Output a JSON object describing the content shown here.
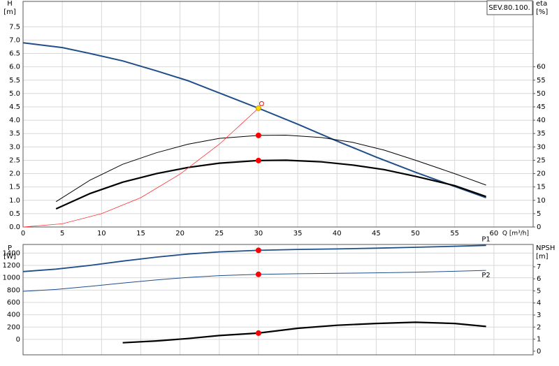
{
  "model_label": "SEV.80.100.",
  "chart_data": [
    {
      "type": "line",
      "y_label": "H",
      "y_unit": "[m]",
      "y2_label": "eta",
      "y2_unit": "[%]",
      "x_label": "Q [m³/h]",
      "xlim": [
        0,
        65
      ],
      "xticks": [
        0,
        5,
        10,
        15,
        20,
        25,
        30,
        35,
        40,
        45,
        50,
        55,
        60
      ],
      "ylim": [
        0,
        8.45
      ],
      "yticks": [
        {
          "value": 0,
          "label": "0.0"
        },
        0.5,
        {
          "value": 1,
          "label": "1.0"
        },
        1.5,
        {
          "value": 2,
          "label": "2.0"
        },
        2.5,
        {
          "value": 3,
          "label": "3.0"
        },
        3.5,
        {
          "value": 4,
          "label": "4.0"
        },
        4.5,
        {
          "value": 5,
          "label": "5.0"
        },
        5.5,
        {
          "value": 6,
          "label": "6.0"
        },
        6.5,
        {
          "value": 7,
          "label": "7.0"
        },
        7.5
      ],
      "y2lim": [
        0,
        84.5
      ],
      "y2ticks": [
        0,
        5,
        10,
        15,
        20,
        25,
        30,
        35,
        40,
        45,
        50,
        55,
        60
      ],
      "grid": true,
      "series": [
        {
          "color": "#1f4e89",
          "line_width": 2,
          "x": [
            0,
            5,
            8.5,
            12.7,
            17,
            21,
            25,
            30,
            35,
            40,
            45,
            50,
            55,
            59
          ],
          "values": [
            6.9,
            6.72,
            6.5,
            6.22,
            5.85,
            5.48,
            5.02,
            4.45,
            3.85,
            3.22,
            2.62,
            2.05,
            1.52,
            1.1
          ]
        },
        {
          "color": "#000000",
          "line_width": 1,
          "axis": "y2",
          "x": [
            4.2,
            8.5,
            12.7,
            17,
            21,
            25,
            30,
            33.5,
            38,
            42,
            46,
            50,
            55,
            59
          ],
          "values": [
            9.5,
            17.5,
            23.5,
            27.8,
            31,
            33.2,
            34.3,
            34.4,
            33.5,
            31.7,
            28.8,
            25,
            20,
            15.7
          ]
        },
        {
          "color": "#000000",
          "line_width": 2.2,
          "axis": "y2",
          "x": [
            4.2,
            8.5,
            12.7,
            17,
            21,
            25,
            30,
            33.5,
            38,
            42,
            46,
            50,
            55,
            59
          ],
          "values": [
            6.8,
            12.5,
            16.8,
            20,
            22.3,
            23.9,
            24.9,
            25,
            24.4,
            23.2,
            21.5,
            19,
            15.5,
            11.4
          ]
        },
        {
          "color": "#ff3030",
          "line_width": 0.8,
          "x": [
            0,
            5,
            10,
            15,
            20,
            25,
            30
          ],
          "values": [
            0,
            0.12,
            0.5,
            1.1,
            1.98,
            3.1,
            4.45
          ]
        }
      ],
      "markers": [
        {
          "x": 30,
          "y": 4.45,
          "color": "#ffd700"
        },
        {
          "x": 30,
          "y": 34.3,
          "axis": "y2",
          "color": "#ff0000"
        },
        {
          "x": 30,
          "y": 24.9,
          "axis": "y2",
          "color": "#ff0000"
        },
        {
          "x": 30.4,
          "y": 4.62,
          "color": "#ff0000",
          "shape": "open"
        }
      ]
    },
    {
      "type": "line",
      "y_label": "P",
      "y_unit": "[W]",
      "y2_label": "NPSH",
      "y2_unit": "[m]",
      "xlim": [
        0,
        65
      ],
      "xticks": [
        0,
        5,
        10,
        15,
        20,
        25,
        30,
        35,
        40,
        45,
        50,
        55,
        60
      ],
      "ylim": [
        -250,
        1540
      ],
      "yticks": [
        0,
        200,
        400,
        600,
        800,
        1000,
        1200,
        1400
      ],
      "y2lim": [
        -0.3,
        8.85
      ],
      "y2ticks": [
        0,
        1,
        2,
        3,
        4,
        5,
        6,
        7
      ],
      "grid": true,
      "series": [
        {
          "name": "P1",
          "color": "#1f4e89",
          "line_width": 1.8,
          "x": [
            0,
            4.2,
            8.5,
            12.7,
            17,
            21,
            25,
            30,
            35,
            40,
            45,
            50,
            55,
            59
          ],
          "values": [
            1100,
            1140,
            1200,
            1270,
            1335,
            1385,
            1420,
            1445,
            1460,
            1468,
            1480,
            1495,
            1510,
            1525
          ]
        },
        {
          "name": "P2",
          "color": "#1f4e89",
          "line_width": 1,
          "x": [
            0,
            4.2,
            8.5,
            12.7,
            17,
            21,
            25,
            30,
            35,
            40,
            45,
            50,
            55,
            59
          ],
          "values": [
            780,
            810,
            860,
            915,
            965,
            1005,
            1035,
            1055,
            1065,
            1072,
            1080,
            1090,
            1105,
            1120
          ]
        },
        {
          "color": "#000000",
          "line_width": 2.2,
          "axis": "y2",
          "x": [
            12.7,
            17,
            21,
            25,
            30,
            35,
            40,
            45,
            50,
            55,
            59
          ],
          "values": [
            0.7,
            0.85,
            1.05,
            1.3,
            1.5,
            1.9,
            2.15,
            2.3,
            2.4,
            2.3,
            2.05
          ]
        }
      ],
      "markers": [
        {
          "x": 30,
          "y": 1445,
          "color": "#ff0000"
        },
        {
          "x": 30,
          "y": 1055,
          "color": "#ff0000"
        },
        {
          "x": 30,
          "y": 1.5,
          "axis": "y2",
          "color": "#ff0000"
        }
      ]
    }
  ]
}
